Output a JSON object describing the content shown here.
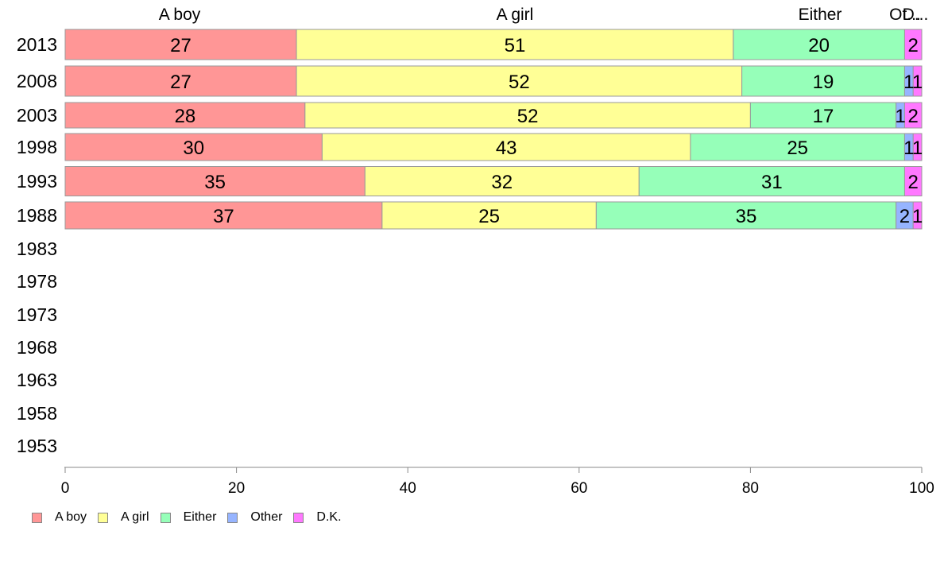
{
  "chart_data": {
    "type": "bar",
    "orientation": "horizontal",
    "stacked": true,
    "categories": [
      "2013",
      "2008",
      "2003",
      "1998",
      "1993",
      "1988",
      "1983",
      "1978",
      "1973",
      "1968",
      "1963",
      "1958",
      "1953"
    ],
    "series": [
      {
        "name": "A boy",
        "color": "#ff9696",
        "values": [
          27,
          27,
          28,
          30,
          35,
          37,
          null,
          null,
          null,
          null,
          null,
          null,
          null
        ]
      },
      {
        "name": "A girl",
        "color": "#ffff96",
        "values": [
          51,
          52,
          52,
          43,
          32,
          25,
          null,
          null,
          null,
          null,
          null,
          null,
          null
        ]
      },
      {
        "name": "Either",
        "color": "#96ffb9",
        "values": [
          20,
          19,
          17,
          25,
          31,
          35,
          null,
          null,
          null,
          null,
          null,
          null,
          null
        ]
      },
      {
        "name": "Other",
        "color": "#96b4ff",
        "values": [
          0,
          1,
          1,
          1,
          0,
          2,
          null,
          null,
          null,
          null,
          null,
          null,
          null
        ]
      },
      {
        "name": "D.K.",
        "color": "#ff78ff",
        "values": [
          2,
          1,
          2,
          1,
          2,
          1,
          null,
          null,
          null,
          null,
          null,
          null,
          null
        ]
      }
    ],
    "data_labels": [
      [
        "27",
        "51",
        "20",
        "",
        "2"
      ],
      [
        "27",
        "52",
        "19",
        "1",
        "1"
      ],
      [
        "28",
        "52",
        "17",
        "1",
        "2"
      ],
      [
        "30",
        "43",
        "25",
        "1",
        "1"
      ],
      [
        "35",
        "32",
        "31",
        "",
        "2"
      ],
      [
        "37",
        "25",
        "35",
        "2",
        "1"
      ]
    ],
    "top_labels": [
      "A boy",
      "A girl",
      "Either",
      "Ot...",
      "D..."
    ],
    "xlim": [
      0,
      100
    ],
    "xticks": [
      "0",
      "20",
      "40",
      "60",
      "80",
      "100"
    ],
    "grid": false,
    "legend_position": "bottom-left"
  },
  "legend": {
    "items": [
      {
        "label": "A boy",
        "color": "#ff9696"
      },
      {
        "label": "A girl",
        "color": "#ffff96"
      },
      {
        "label": "Either",
        "color": "#96ffb9"
      },
      {
        "label": "Other",
        "color": "#96b4ff"
      },
      {
        "label": "D.K.",
        "color": "#ff78ff"
      }
    ]
  }
}
